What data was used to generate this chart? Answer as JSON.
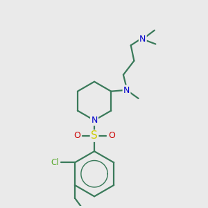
{
  "background_color": "#eaeaea",
  "bond_color": "#3a7a5a",
  "nitrogen_color": "#0000cc",
  "sulfur_color": "#cccc00",
  "oxygen_color": "#cc0000",
  "chlorine_color": "#5aaa30",
  "line_width": 1.6,
  "figsize": [
    3.0,
    3.0
  ],
  "dpi": 100,
  "xlim": [
    1.5,
    8.0
  ],
  "ylim": [
    0.5,
    10.0
  ]
}
